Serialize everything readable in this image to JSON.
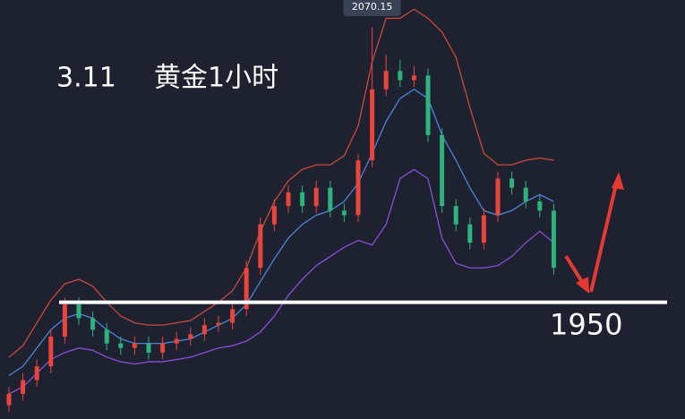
{
  "chart_data": {
    "type": "candlestick",
    "date": "3.11",
    "title": "黄金1小时",
    "ylim": [
      1899,
      2082
    ],
    "up_color": "#e8453c",
    "down_color": "#2fb37e",
    "open": [
      1905,
      1910,
      1916,
      1922,
      1935,
      1949,
      1943,
      1938,
      1932,
      1930,
      1932,
      1928,
      1932,
      1934,
      1936,
      1940,
      1941,
      1947,
      1965,
      1984,
      1992,
      1998,
      1992,
      2000,
      1990,
      1988,
      2012,
      2043,
      2051,
      2047,
      2049,
      2023,
      1992,
      1984,
      1976,
      1988,
      2004,
      2000,
      1994,
      1990
    ],
    "high": [
      1913,
      1919,
      1925,
      1938,
      1952,
      1952,
      1946,
      1941,
      1935,
      1935,
      1935,
      1935,
      1937,
      1939,
      1943,
      1944,
      1950,
      1968,
      1987,
      1995,
      2001,
      2001,
      2003,
      2003,
      1993,
      2015,
      2070.15,
      2058,
      2056,
      2053,
      2052,
      2026,
      1995,
      1987,
      1991,
      2007,
      2007,
      2003,
      1997,
      1993
    ],
    "low": [
      1902,
      1907,
      1913,
      1919,
      1932,
      1940,
      1935,
      1929,
      1927,
      1927,
      1925,
      1925,
      1929,
      1931,
      1933,
      1937,
      1938,
      1944,
      1962,
      1981,
      1989,
      1989,
      1989,
      1987,
      1985,
      1985,
      2009,
      2040,
      2044,
      2044,
      2020,
      1989,
      1981,
      1973,
      1973,
      1985,
      1997,
      1991,
      1987,
      1962
    ],
    "close": [
      1910,
      1916,
      1922,
      1935,
      1949,
      1943,
      1938,
      1932,
      1930,
      1932,
      1928,
      1932,
      1934,
      1936,
      1940,
      1941,
      1947,
      1965,
      1984,
      1992,
      1998,
      1992,
      2000,
      1990,
      1988,
      2012,
      2043,
      2051,
      2047,
      2049,
      2023,
      1992,
      1984,
      1976,
      1988,
      2004,
      2000,
      1994,
      1990,
      1965
    ],
    "bands": [
      {
        "color": "#c94a3a",
        "values": [
          1926,
          1931,
          1941,
          1951,
          1958,
          1960,
          1957,
          1950,
          1944,
          1941,
          1940,
          1940,
          1941,
          1942,
          1946,
          1950,
          1955,
          1965,
          1981,
          1994,
          2003,
          2008,
          2010,
          2010,
          2014,
          2027,
          2055,
          2074,
          2074,
          2078,
          2074,
          2068,
          2057,
          2035,
          2015,
          2010,
          2010,
          2012,
          2013,
          2012
        ]
      },
      {
        "color": "#4a86d8",
        "values": [
          1918,
          1922,
          1930,
          1938,
          1943,
          1945,
          1943,
          1938,
          1934,
          1932,
          1932,
          1932,
          1933,
          1934,
          1937,
          1940,
          1943,
          1949,
          1959,
          1969,
          1978,
          1984,
          1988,
          1990,
          1994,
          2002,
          2015,
          2029,
          2039,
          2043,
          2039,
          2023,
          2012,
          2000,
          1990,
          1988,
          1990,
          1994,
          1997,
          1994
        ]
      },
      {
        "color": "#8a4fd8",
        "values": [
          1910,
          1913,
          1919,
          1925,
          1928,
          1930,
          1929,
          1926,
          1924,
          1923,
          1924,
          1924,
          1925,
          1926,
          1928,
          1930,
          1931,
          1933,
          1937,
          1944,
          1953,
          1960,
          1966,
          1970,
          1974,
          1977,
          1975,
          1984,
          2004,
          2008,
          2004,
          1978,
          1967,
          1965,
          1965,
          1966,
          1970,
          1976,
          1981,
          1976
        ]
      }
    ],
    "level": 1950
  }
}
